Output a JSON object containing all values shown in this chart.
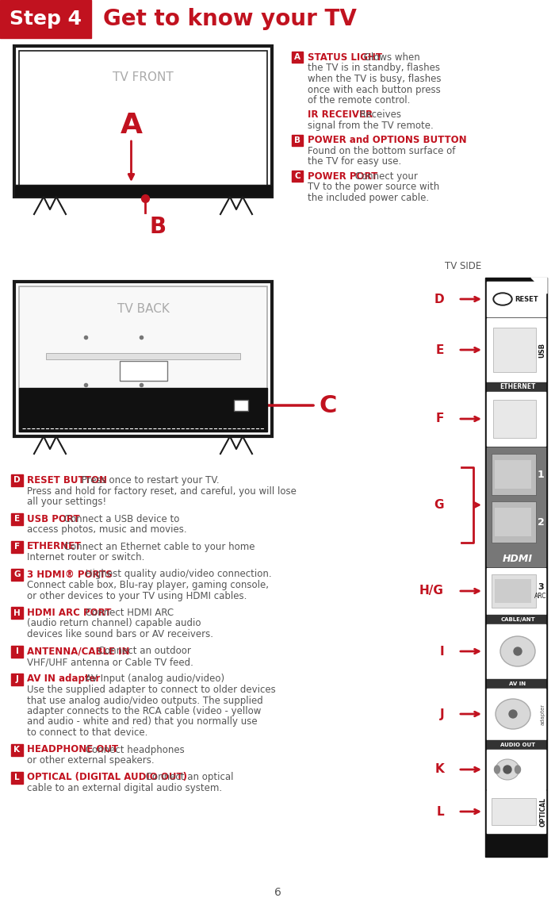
{
  "title_step": "Step 4",
  "title_main": "Get to know your TV",
  "red": "#C1121F",
  "black": "#1a1a1a",
  "dark_gray": "#555555",
  "med_gray": "#888888",
  "light_gray": "#cccccc",
  "page_num": "6",
  "front_label": "TV FRONT",
  "back_label": "TV BACK",
  "side_label": "TV SIDE",
  "entries_right": [
    {
      "letter": "A",
      "bold_text": "STATUS LIGHT",
      "normal_text": " Glows when\nthe TV is in standby, flashes\nwhen the TV is busy, flashes\nonce with each button press\nof the remote control."
    },
    {
      "letter": "",
      "bold_text": "IR RECEIVER",
      "normal_text": " Receives\nsignal from the TV remote."
    },
    {
      "letter": "B",
      "bold_text": "POWER and OPTIONS BUTTON",
      "normal_text": "\nFound on the bottom surface of\nthe TV for easy use."
    },
    {
      "letter": "C",
      "bold_text": "POWER PORT",
      "normal_text": " Connect your\nTV to the power source with\nthe included power cable."
    }
  ],
  "entries_bottom": [
    {
      "letter": "D",
      "bold_text": "RESET BUTTON",
      "normal_text": " Press once to restart your TV.\nPress and hold for factory reset, and careful, you will lose\nall your settings!"
    },
    {
      "letter": "E",
      "bold_text": "USB PORT",
      "normal_text": " Connect a USB device to\naccess photos, music and movies."
    },
    {
      "letter": "F",
      "bold_text": "ETHERNET",
      "normal_text": " Connect an Ethernet cable to your home\nInternet router or switch."
    },
    {
      "letter": "G",
      "bold_text": "3 HDMI® PORTS",
      "normal_text": " Highest quality audio/video connection.\nConnect cable box, Blu-ray player, gaming console,\nor other devices to your TV using HDMI cables."
    },
    {
      "letter": "H",
      "bold_text": "HDMI ARC PORT",
      "normal_text": " Connect HDMI ARC\n(audio return channel) capable audio\ndevices like sound bars or AV receivers."
    },
    {
      "letter": "I",
      "bold_text": "ANTENNA/CABLE IN",
      "normal_text": " Connect an outdoor\nVHF/UHF antenna or Cable TV feed."
    },
    {
      "letter": "J",
      "bold_text": "AV IN adapter",
      "normal_text": " AV Input (analog audio/video)\nUse the supplied adapter to connect to older devices\nthat use analog audio/video outputs. The supplied\nadapter connects to the RCA cable (video - yellow\nand audio - white and red) that you normally use\nto connect to that device."
    },
    {
      "letter": "K",
      "bold_text": "HEADPHONE OUT",
      "normal_text": " Connect headphones\nor other external speakers."
    },
    {
      "letter": "L",
      "bold_text": "OPTICAL (DIGITAL AUDIO OUT)",
      "normal_text": " Connect an optical\ncable to an external digital audio system."
    }
  ]
}
